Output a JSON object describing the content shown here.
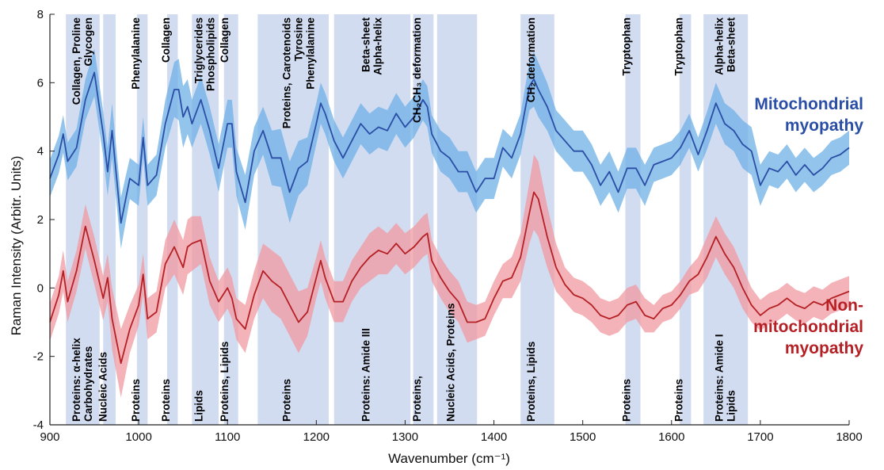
{
  "chart_data": {
    "type": "line",
    "title": "",
    "xlabel": "Wavenumber (cm⁻¹)",
    "ylabel": "Raman Intensity (Arbitr. Units)",
    "xlim": [
      900,
      1800
    ],
    "ylim": [
      -4,
      8
    ],
    "xticks": [
      900,
      1000,
      1100,
      1200,
      1300,
      1400,
      1500,
      1600,
      1700,
      1800
    ],
    "yticks": [
      -4,
      -2,
      0,
      2,
      4,
      6,
      8
    ],
    "grid": false,
    "legend": "none",
    "series": [
      {
        "name": "Mitochondrial myopathy",
        "label_lines": [
          "Mitochondrial",
          "myopathy"
        ],
        "color": "#2a4ea6",
        "band_color": "#6fb0e6",
        "x": [
          900,
          910,
          915,
          920,
          930,
          940,
          950,
          960,
          965,
          970,
          980,
          990,
          1000,
          1005,
          1010,
          1020,
          1030,
          1040,
          1045,
          1050,
          1055,
          1060,
          1070,
          1080,
          1090,
          1100,
          1105,
          1110,
          1120,
          1130,
          1140,
          1150,
          1160,
          1170,
          1180,
          1190,
          1200,
          1205,
          1210,
          1220,
          1230,
          1240,
          1250,
          1260,
          1270,
          1280,
          1290,
          1300,
          1310,
          1320,
          1325,
          1330,
          1340,
          1350,
          1360,
          1370,
          1380,
          1390,
          1400,
          1410,
          1420,
          1430,
          1440,
          1445,
          1450,
          1460,
          1470,
          1480,
          1490,
          1500,
          1510,
          1520,
          1530,
          1540,
          1550,
          1560,
          1570,
          1580,
          1590,
          1600,
          1610,
          1620,
          1630,
          1640,
          1650,
          1660,
          1670,
          1680,
          1690,
          1700,
          1710,
          1720,
          1730,
          1740,
          1750,
          1760,
          1770,
          1780,
          1790,
          1800
        ],
        "y": [
          3.2,
          3.9,
          4.5,
          3.7,
          4.1,
          5.5,
          6.3,
          4.5,
          3.4,
          4.6,
          1.9,
          3.2,
          3.0,
          4.4,
          3.0,
          3.3,
          4.8,
          5.8,
          5.8,
          5.0,
          5.3,
          4.8,
          5.5,
          4.6,
          3.5,
          4.8,
          4.8,
          3.4,
          2.5,
          4.0,
          4.6,
          3.8,
          3.8,
          2.8,
          3.5,
          3.7,
          4.8,
          5.4,
          5.1,
          4.3,
          3.8,
          4.3,
          4.8,
          4.5,
          4.7,
          4.6,
          5.1,
          4.7,
          5.0,
          5.5,
          5.3,
          4.5,
          4.0,
          3.8,
          3.4,
          3.4,
          2.8,
          3.2,
          3.2,
          4.1,
          3.8,
          4.5,
          5.9,
          6.1,
          5.8,
          5.3,
          4.6,
          4.3,
          4.0,
          4.0,
          3.6,
          3.0,
          3.4,
          2.8,
          3.5,
          3.5,
          3.0,
          3.6,
          3.7,
          3.8,
          4.1,
          4.6,
          3.9,
          4.6,
          5.4,
          4.8,
          4.6,
          4.2,
          4.0,
          3.0,
          3.5,
          3.4,
          3.7,
          3.3,
          3.6,
          3.3,
          3.5,
          3.8,
          3.9,
          4.1
        ],
        "band": [
          0.55,
          0.55,
          0.55,
          0.55,
          0.55,
          0.6,
          0.7,
          0.65,
          0.7,
          0.8,
          0.75,
          0.6,
          0.6,
          0.6,
          0.6,
          0.6,
          0.7,
          0.8,
          0.9,
          0.9,
          0.8,
          0.7,
          0.7,
          0.7,
          0.7,
          0.7,
          0.7,
          0.7,
          0.8,
          0.7,
          0.7,
          0.8,
          0.85,
          0.9,
          0.8,
          0.7,
          0.6,
          0.6,
          0.6,
          0.6,
          0.6,
          0.6,
          0.6,
          0.6,
          0.6,
          0.6,
          0.6,
          0.6,
          0.6,
          0.6,
          0.6,
          0.55,
          0.6,
          0.6,
          0.6,
          0.6,
          0.6,
          0.6,
          0.6,
          0.55,
          0.6,
          0.6,
          0.7,
          0.8,
          0.8,
          0.7,
          0.6,
          0.6,
          0.6,
          0.6,
          0.6,
          0.6,
          0.6,
          0.6,
          0.6,
          0.6,
          0.6,
          0.5,
          0.5,
          0.5,
          0.5,
          0.5,
          0.5,
          0.55,
          0.6,
          0.6,
          0.6,
          0.7,
          0.7,
          0.6,
          0.5,
          0.5,
          0.5,
          0.5,
          0.5,
          0.5,
          0.5,
          0.5,
          0.5,
          0.5
        ]
      },
      {
        "name": "Non-mitochondrial myopathy",
        "label_lines": [
          "Non-",
          "mitochondrial",
          "myopathy"
        ],
        "color": "#b52025",
        "band_color": "#f09aa0",
        "x": [
          900,
          910,
          915,
          920,
          930,
          940,
          950,
          960,
          965,
          970,
          980,
          990,
          1000,
          1005,
          1010,
          1020,
          1030,
          1040,
          1045,
          1050,
          1055,
          1060,
          1070,
          1080,
          1090,
          1100,
          1105,
          1110,
          1120,
          1130,
          1140,
          1150,
          1160,
          1170,
          1180,
          1190,
          1200,
          1205,
          1210,
          1220,
          1230,
          1240,
          1250,
          1260,
          1270,
          1280,
          1290,
          1300,
          1310,
          1320,
          1325,
          1330,
          1340,
          1350,
          1360,
          1370,
          1380,
          1390,
          1400,
          1410,
          1420,
          1430,
          1440,
          1445,
          1450,
          1460,
          1470,
          1480,
          1490,
          1500,
          1510,
          1520,
          1530,
          1540,
          1550,
          1560,
          1570,
          1580,
          1590,
          1600,
          1610,
          1620,
          1630,
          1640,
          1650,
          1660,
          1670,
          1680,
          1690,
          1700,
          1710,
          1720,
          1730,
          1740,
          1750,
          1760,
          1770,
          1780,
          1790,
          1800
        ],
        "y": [
          -1.0,
          -0.2,
          0.5,
          -0.4,
          0.5,
          1.8,
          0.8,
          -0.3,
          0.3,
          -0.9,
          -2.2,
          -1.2,
          -0.5,
          0.4,
          -0.9,
          -0.7,
          0.7,
          1.2,
          0.9,
          0.6,
          1.2,
          1.3,
          1.4,
          0.2,
          -0.4,
          0.0,
          -0.3,
          -0.9,
          -1.2,
          -0.2,
          0.5,
          0.2,
          0.0,
          -0.5,
          -1.0,
          -0.7,
          0.3,
          0.8,
          0.3,
          -0.4,
          -0.4,
          0.2,
          0.6,
          0.9,
          1.1,
          1.0,
          1.3,
          1.0,
          1.2,
          1.5,
          1.6,
          0.8,
          0.3,
          -0.1,
          -0.4,
          -1.0,
          -1.0,
          -0.9,
          -0.3,
          0.2,
          0.3,
          0.9,
          2.2,
          2.8,
          2.6,
          1.5,
          0.6,
          0.1,
          -0.2,
          -0.3,
          -0.5,
          -0.8,
          -0.9,
          -0.8,
          -0.5,
          -0.4,
          -0.8,
          -0.9,
          -0.6,
          -0.5,
          -0.2,
          0.2,
          0.4,
          0.9,
          1.5,
          1.0,
          0.6,
          0.0,
          -0.5,
          -0.8,
          -0.6,
          -0.5,
          -0.3,
          -0.5,
          -0.6,
          -0.4,
          -0.5,
          -0.3,
          -0.2,
          -0.1
        ],
        "band": [
          0.55,
          0.55,
          0.6,
          0.6,
          0.6,
          0.65,
          0.7,
          0.65,
          0.7,
          0.9,
          1.0,
          0.7,
          0.6,
          0.6,
          0.6,
          0.6,
          0.7,
          0.8,
          0.8,
          0.8,
          0.8,
          0.8,
          0.7,
          0.7,
          0.6,
          0.6,
          0.6,
          0.6,
          0.7,
          0.7,
          0.8,
          0.9,
          0.9,
          0.9,
          0.9,
          0.7,
          0.6,
          0.6,
          0.6,
          0.6,
          0.6,
          0.6,
          0.6,
          0.7,
          0.7,
          0.6,
          0.6,
          0.6,
          0.6,
          0.6,
          0.6,
          0.6,
          0.6,
          0.6,
          0.6,
          0.6,
          0.5,
          0.5,
          0.5,
          0.5,
          0.6,
          0.7,
          0.9,
          1.1,
          1.1,
          0.9,
          0.7,
          0.5,
          0.5,
          0.5,
          0.5,
          0.5,
          0.5,
          0.5,
          0.5,
          0.5,
          0.5,
          0.4,
          0.4,
          0.4,
          0.4,
          0.4,
          0.5,
          0.6,
          0.6,
          0.6,
          0.6,
          0.6,
          0.5,
          0.45,
          0.45,
          0.45,
          0.45,
          0.45,
          0.45,
          0.45,
          0.45,
          0.45,
          0.45,
          0.45
        ]
      }
    ],
    "shaded_regions": [
      {
        "x0": 918,
        "x1": 956,
        "top_label": "Collagen, Proline",
        "bottom_label": "Proteins: α-helix"
      },
      {
        "x0": 918,
        "x1": 956,
        "top_label": "Glycogen",
        "bottom_label": "Carbohydrates"
      },
      {
        "x0": 960,
        "x1": 974,
        "top_label": "",
        "bottom_label": "Nucleic Acids"
      },
      {
        "x0": 998,
        "x1": 1010,
        "top_label": "Phenylalanine",
        "bottom_label": "Proteins"
      },
      {
        "x0": 1032,
        "x1": 1044,
        "top_label": "Collagen",
        "bottom_label": "Proteins"
      },
      {
        "x0": 1060,
        "x1": 1090,
        "top_label": "Triglycerides",
        "bottom_label": "Lipids"
      },
      {
        "x0": 1060,
        "x1": 1090,
        "top_label": "Phospholipids",
        "bottom_label": ""
      },
      {
        "x0": 1096,
        "x1": 1112,
        "top_label": "Collagen",
        "bottom_label": "Proteins, Lipids"
      },
      {
        "x0": 1134,
        "x1": 1214,
        "top_label": "Proteins, Carotenoids",
        "bottom_label": "Proteins"
      },
      {
        "x0": 1134,
        "x1": 1214,
        "top_label": "Tyrosine",
        "bottom_label": ""
      },
      {
        "x0": 1134,
        "x1": 1214,
        "top_label": "Phenylalanine",
        "bottom_label": ""
      },
      {
        "x0": 1220,
        "x1": 1306,
        "top_label": "Beta-sheet",
        "bottom_label": "Proteins: Amide III"
      },
      {
        "x0": 1220,
        "x1": 1306,
        "top_label": "Alpha-helix",
        "bottom_label": ""
      },
      {
        "x0": 1309,
        "x1": 1332,
        "top_label": "CH₂CH₃ deformation",
        "bottom_label": "Proteins,"
      },
      {
        "x0": 1336,
        "x1": 1381,
        "top_label": "",
        "bottom_label": "Nucleic Acids, Proteins"
      },
      {
        "x0": 1430,
        "x1": 1468,
        "top_label": "CH₂ deformation",
        "bottom_label": "Proteins, Lipids"
      },
      {
        "x0": 1548,
        "x1": 1565,
        "top_label": "Tryptophan",
        "bottom_label": "Proteins"
      },
      {
        "x0": 1609,
        "x1": 1622,
        "top_label": "Tryptophan",
        "bottom_label": "Proteins"
      },
      {
        "x0": 1636,
        "x1": 1686,
        "top_label": "Alpha-helix",
        "bottom_label": "Proteins: Amide I"
      },
      {
        "x0": 1636,
        "x1": 1686,
        "top_label": "Beta-sheet",
        "bottom_label": "Lipids"
      }
    ]
  }
}
